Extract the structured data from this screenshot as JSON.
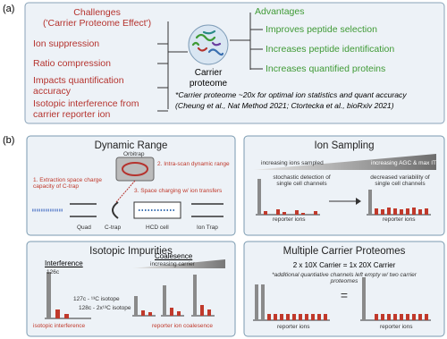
{
  "panel_a": {
    "label": "(a)",
    "challenges": {
      "title": [
        "Challenges",
        "('Carrier Proteome Effect')"
      ],
      "items": [
        "Ion suppression",
        "Ratio compression",
        "Impacts quantification accuracy",
        "Isotopic interference from carrier reporter ion"
      ]
    },
    "center": "Carrier proteome",
    "advantages": {
      "title": "Advantages",
      "items": [
        "Improves peptide selection",
        "Increases peptide identification",
        "Increases quantified proteins"
      ]
    },
    "footnote": [
      "*Carrier proteome ~20x for optimal ion statistics and quant accuracy",
      "(Cheung et al., Nat Method 2021; Ctortecka et al., bioRxiv 2021)"
    ]
  },
  "panel_b": {
    "label": "(b)",
    "dynamic_range": {
      "title": "Dynamic Range",
      "orbitrap": "Orbitrap",
      "notes": [
        "1. Extraction space charge capacity of C-trap",
        "2. Intra-scan dynamic range",
        "3. Space charging w/ ion transfers"
      ],
      "parts": [
        "Quad",
        "C-trap",
        "HCD cell",
        "Ion Trap"
      ]
    },
    "ion_sampling": {
      "title": "Ion Sampling",
      "gradient_left": "increasing ions sampled",
      "gradient_right": "increasing AGC & max IT",
      "left_note": "stochastic detection of single cell channels",
      "right_note": "decreased variability of single cell channels",
      "axis_label": "reporter ions"
    },
    "isotopic": {
      "title": "Isotopic Impurities",
      "interference": "Interference",
      "coalescence": "Coalesence",
      "increasing": "increasing carrier",
      "labels": [
        "126c",
        "127c - ¹³C isotope",
        "128c - 2x¹³C isotope"
      ],
      "notes": [
        "isotopic interference",
        "reporter ion coalesence"
      ]
    },
    "multiple": {
      "title": "Multiple Carrier Proteomes",
      "equation": "2 x 10X Carrier = 1x 20X Carrier",
      "note": "*additional quantiative channels left empty w/ two carrier proteomes",
      "axis_label": "reporter ions"
    }
  }
}
